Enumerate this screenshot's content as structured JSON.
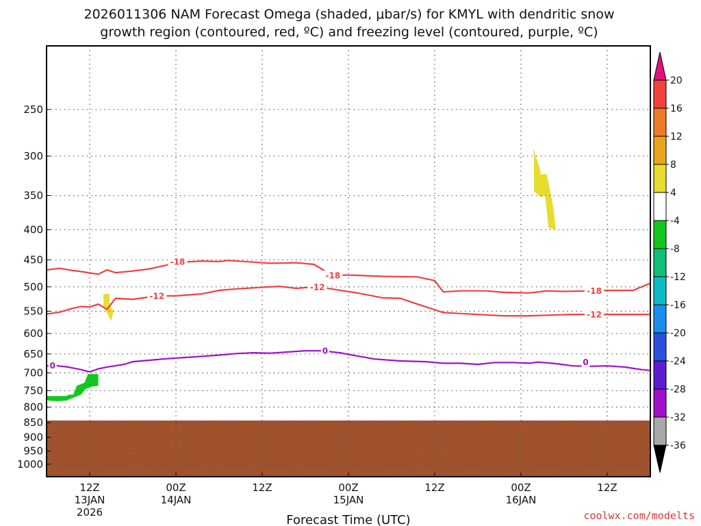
{
  "chart_data": {
    "type": "time-height cross section",
    "title_line1": "2026011306 NAM Forecast Omega (shaded, μbar/s) for KMYL with dendritic snow",
    "title_line2": "growth region (contoured, red, ºC) and freezing level (contoured, purple, ºC)",
    "xlabel": "Forecast Time (UTC)",
    "credit": "coolwx.com/modelts",
    "y_axis": {
      "ylim_hpa": [
        1050,
        195
      ],
      "scale": "log-pressure",
      "ticks": [
        "250",
        "300",
        "350",
        "400",
        "450",
        "500",
        "550",
        "600",
        "650",
        "700",
        "750",
        "800",
        "850",
        "900",
        "950",
        "1000"
      ]
    },
    "x_axis": {
      "xlim_hours": [
        5,
        75
      ],
      "ticks": [
        {
          "hour": 10,
          "line1": "12Z",
          "line2": "13JAN",
          "line3": "2026"
        },
        {
          "hour": 20,
          "line1": "00Z",
          "line2": "14JAN",
          "line3": ""
        },
        {
          "hour": 30,
          "line1": "12Z",
          "line2": "",
          "line3": ""
        },
        {
          "hour": 40,
          "line1": "00Z",
          "line2": "15JAN",
          "line3": ""
        },
        {
          "hour": 50,
          "line1": "12Z",
          "line2": "",
          "line3": ""
        },
        {
          "hour": 60,
          "line1": "00Z",
          "line2": "16JAN",
          "line3": ""
        },
        {
          "hour": 70,
          "line1": "12Z",
          "line2": "",
          "line3": ""
        }
      ]
    },
    "colorbar": {
      "tick_labels": [
        "20",
        "16",
        "12",
        "8",
        "4",
        "-4",
        "-8",
        "-12",
        "-16",
        "-20",
        "-24",
        "-28",
        "-32",
        "-36"
      ],
      "bins": [
        {
          "range": [
            16,
            20
          ],
          "color": "#f4423c"
        },
        {
          "range": [
            12,
            16
          ],
          "color": "#f07a28"
        },
        {
          "range": [
            8,
            12
          ],
          "color": "#e8a61e"
        },
        {
          "range": [
            4,
            8
          ],
          "color": "#e8dc2e"
        },
        {
          "range": [
            -4,
            4
          ],
          "color": "#ffffff"
        },
        {
          "range": [
            -8,
            -4
          ],
          "color": "#12c81e"
        },
        {
          "range": [
            -12,
            -8
          ],
          "color": "#0fbf7a"
        },
        {
          "range": [
            -16,
            -12
          ],
          "color": "#10b9c6"
        },
        {
          "range": [
            -20,
            -16
          ],
          "color": "#1a8ef0"
        },
        {
          "range": [
            -24,
            -20
          ],
          "color": "#2a50e0"
        },
        {
          "range": [
            -28,
            -24
          ],
          "color": "#5a1fd0"
        },
        {
          "range": [
            -32,
            -28
          ],
          "color": "#a010c8"
        },
        {
          "range": [
            -36,
            -32
          ],
          "color": "#a8a8a8"
        }
      ],
      "top_arrow_color": "#e0127c",
      "bottom_arrow_color": "#000000"
    },
    "contours": [
      {
        "name": "-18 °C isotherm",
        "label": "-18",
        "color": "#ef4040",
        "label_at": [
          [
            20.2,
            453
          ],
          [
            38.2,
            478
          ],
          [
            68.5,
            508
          ]
        ],
        "points": [
          [
            5,
            468
          ],
          [
            6.5,
            465
          ],
          [
            8,
            469
          ],
          [
            9,
            471
          ],
          [
            11,
            476
          ],
          [
            12,
            468
          ],
          [
            13,
            473
          ],
          [
            15,
            470
          ],
          [
            17,
            466
          ],
          [
            19,
            459
          ],
          [
            20,
            455
          ],
          [
            21,
            454
          ],
          [
            23,
            452
          ],
          [
            25,
            453
          ],
          [
            26,
            451
          ],
          [
            29,
            454
          ],
          [
            31,
            456
          ],
          [
            34,
            455
          ],
          [
            36,
            458
          ],
          [
            38,
            477
          ],
          [
            41,
            478
          ],
          [
            44,
            480
          ],
          [
            48,
            481
          ],
          [
            50,
            488
          ],
          [
            51,
            510
          ],
          [
            53,
            508
          ],
          [
            56,
            508
          ],
          [
            58,
            511
          ],
          [
            61,
            512
          ],
          [
            63,
            508
          ],
          [
            65,
            509
          ],
          [
            68,
            508
          ],
          [
            69.5,
            507
          ],
          [
            71,
            507
          ],
          [
            73,
            507
          ],
          [
            75,
            493
          ]
        ]
      },
      {
        "name": "-12 °C isotherm",
        "label": "-12",
        "color": "#ef4040",
        "label_at": [
          [
            17.8,
            518
          ],
          [
            36.4,
            500
          ],
          [
            68.5,
            557
          ]
        ],
        "points": [
          [
            5,
            556
          ],
          [
            6.5,
            552
          ],
          [
            8,
            544
          ],
          [
            9,
            540
          ],
          [
            10,
            541
          ],
          [
            11,
            535
          ],
          [
            12,
            546
          ],
          [
            13,
            523
          ],
          [
            15,
            525
          ],
          [
            17,
            520
          ],
          [
            18.5,
            518
          ],
          [
            20,
            518
          ],
          [
            23,
            514
          ],
          [
            25,
            507
          ],
          [
            27,
            504
          ],
          [
            30,
            501
          ],
          [
            32,
            499
          ],
          [
            34,
            503
          ],
          [
            36,
            500
          ],
          [
            38,
            504
          ],
          [
            41,
            512
          ],
          [
            44,
            522
          ],
          [
            46,
            523
          ],
          [
            48,
            535
          ],
          [
            51,
            553
          ],
          [
            53,
            555
          ],
          [
            56,
            558
          ],
          [
            58,
            560
          ],
          [
            61,
            560
          ],
          [
            64,
            558
          ],
          [
            66,
            557
          ],
          [
            68,
            557
          ],
          [
            70,
            557
          ],
          [
            72,
            557
          ],
          [
            75,
            557
          ]
        ]
      },
      {
        "name": "0 °C freezing level",
        "label": "0",
        "color": "#a010c8",
        "label_at": [
          [
            5.7,
            680
          ],
          [
            37.3,
            642
          ],
          [
            67.5,
            671
          ]
        ],
        "points": [
          [
            5,
            681
          ],
          [
            6,
            680
          ],
          [
            7.5,
            684
          ],
          [
            9,
            691
          ],
          [
            10,
            697
          ],
          [
            11,
            689
          ],
          [
            12,
            684
          ],
          [
            14,
            677
          ],
          [
            15,
            670
          ],
          [
            17,
            666
          ],
          [
            19,
            662
          ],
          [
            21,
            659
          ],
          [
            23,
            656
          ],
          [
            25,
            653
          ],
          [
            27,
            649
          ],
          [
            29,
            647
          ],
          [
            31,
            648
          ],
          [
            33,
            645
          ],
          [
            35,
            642
          ],
          [
            37,
            642
          ],
          [
            39,
            647
          ],
          [
            41,
            655
          ],
          [
            43,
            663
          ],
          [
            46,
            668
          ],
          [
            49,
            670
          ],
          [
            51,
            674
          ],
          [
            53,
            674
          ],
          [
            55,
            677
          ],
          [
            57,
            672
          ],
          [
            59,
            672
          ],
          [
            61,
            674
          ],
          [
            62,
            671
          ],
          [
            64,
            675
          ],
          [
            66,
            681
          ],
          [
            68,
            682
          ],
          [
            70,
            681
          ],
          [
            72,
            684
          ],
          [
            74,
            691
          ],
          [
            75,
            693
          ]
        ]
      }
    ],
    "shaded_omega_regions": [
      {
        "name": "yellow 4 to 8 μbar/s band upper (near 00Z 16JAN)",
        "color": "#e8dc2e",
        "points": [
          [
            61.4,
            290
          ],
          [
            62.2,
            315
          ],
          [
            62.3,
            322
          ],
          [
            63.0,
            322
          ],
          [
            63.8,
            370
          ],
          [
            64.0,
            397
          ],
          [
            64.0,
            400
          ],
          [
            63.2,
            397
          ],
          [
            62.8,
            350
          ],
          [
            62.3,
            352
          ],
          [
            61.5,
            344
          ],
          [
            61.5,
            300
          ]
        ]
      },
      {
        "name": "yellow 4 to 8 μbar/s band lower (near 12Z 13JAN)",
        "color": "#e8dc2e",
        "points": [
          [
            11.6,
            514
          ],
          [
            12.3,
            514
          ],
          [
            12.3,
            533
          ],
          [
            12.5,
            545
          ],
          [
            12.8,
            548
          ],
          [
            12.6,
            562
          ],
          [
            12.5,
            572
          ],
          [
            11.9,
            550
          ],
          [
            11.6,
            540
          ]
        ]
      },
      {
        "name": "green -4 to -8 μbar/s band",
        "color": "#12c81e",
        "points": [
          [
            5,
            766
          ],
          [
            7.3,
            766
          ],
          [
            7.6,
            762
          ],
          [
            8.1,
            762
          ],
          [
            8.5,
            736
          ],
          [
            9.4,
            727
          ],
          [
            9.8,
            703
          ],
          [
            11.0,
            703
          ],
          [
            11.0,
            736
          ],
          [
            10.3,
            738
          ],
          [
            9.5,
            746
          ],
          [
            9.0,
            762
          ],
          [
            8.2,
            770
          ],
          [
            7.3,
            780
          ],
          [
            6.2,
            782
          ],
          [
            5.3,
            780
          ],
          [
            5,
            778
          ]
        ]
      }
    ],
    "terrain": {
      "name": "below ground",
      "color": "#a0522d",
      "top_hpa": 843
    }
  }
}
